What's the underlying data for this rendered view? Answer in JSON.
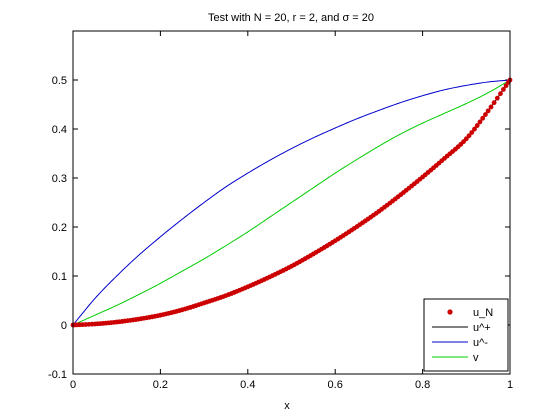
{
  "chart_data": {
    "type": "line",
    "title": "Test with N = 20, r = 2, and σ = 20",
    "xlabel": "x",
    "ylabel": "",
    "xlim": [
      0,
      1
    ],
    "ylim": [
      -0.1,
      0.6
    ],
    "xticks": [
      "0",
      "0.2",
      "0.4",
      "0.6",
      "0.8",
      "1"
    ],
    "yticks": [
      "-0.1",
      "0",
      "0.1",
      "0.2",
      "0.3",
      "0.4",
      "0.5"
    ],
    "grid": false,
    "legend_position": "bottom-right",
    "series": [
      {
        "name": "u_N",
        "color": "#cc0000",
        "style": "markers",
        "x": [
          0,
          0.05,
          0.1,
          0.15,
          0.2,
          0.25,
          0.3,
          0.35,
          0.4,
          0.45,
          0.5,
          0.55,
          0.6,
          0.65,
          0.7,
          0.75,
          0.8,
          0.85,
          0.9,
          0.95,
          1.0
        ],
        "y": [
          0,
          0.002,
          0.006,
          0.012,
          0.02,
          0.031,
          0.045,
          0.06,
          0.078,
          0.098,
          0.12,
          0.145,
          0.172,
          0.201,
          0.232,
          0.266,
          0.302,
          0.34,
          0.38,
          0.437,
          0.5
        ]
      },
      {
        "name": "u^+",
        "color": "#000000",
        "style": "line",
        "x": [
          0,
          0.05,
          0.1,
          0.15,
          0.2,
          0.25,
          0.3,
          0.35,
          0.4,
          0.45,
          0.5,
          0.55,
          0.6,
          0.65,
          0.7,
          0.75,
          0.8,
          0.85,
          0.9,
          0.95,
          1.0
        ],
        "y": [
          0,
          0.002,
          0.006,
          0.012,
          0.02,
          0.031,
          0.045,
          0.06,
          0.078,
          0.098,
          0.12,
          0.145,
          0.172,
          0.201,
          0.232,
          0.266,
          0.302,
          0.34,
          0.38,
          0.437,
          0.5
        ]
      },
      {
        "name": "u^-",
        "color": "#0000cc",
        "style": "line",
        "x": [
          0,
          0.05,
          0.1,
          0.15,
          0.2,
          0.25,
          0.3,
          0.35,
          0.4,
          0.45,
          0.5,
          0.55,
          0.6,
          0.65,
          0.7,
          0.75,
          0.8,
          0.85,
          0.9,
          0.95,
          1.0
        ],
        "y": [
          0,
          0.054,
          0.1,
          0.142,
          0.18,
          0.216,
          0.25,
          0.282,
          0.31,
          0.336,
          0.36,
          0.382,
          0.402,
          0.421,
          0.438,
          0.454,
          0.468,
          0.48,
          0.489,
          0.496,
          0.5
        ]
      },
      {
        "name": "v",
        "color": "#00cc00",
        "style": "line",
        "x": [
          0,
          0.05,
          0.1,
          0.15,
          0.2,
          0.25,
          0.3,
          0.35,
          0.4,
          0.45,
          0.5,
          0.55,
          0.6,
          0.65,
          0.7,
          0.75,
          0.8,
          0.85,
          0.9,
          0.95,
          1.0
        ],
        "y": [
          0,
          0.02,
          0.04,
          0.062,
          0.085,
          0.11,
          0.135,
          0.162,
          0.19,
          0.22,
          0.25,
          0.28,
          0.31,
          0.338,
          0.365,
          0.39,
          0.412,
          0.432,
          0.452,
          0.474,
          0.5
        ]
      }
    ]
  }
}
